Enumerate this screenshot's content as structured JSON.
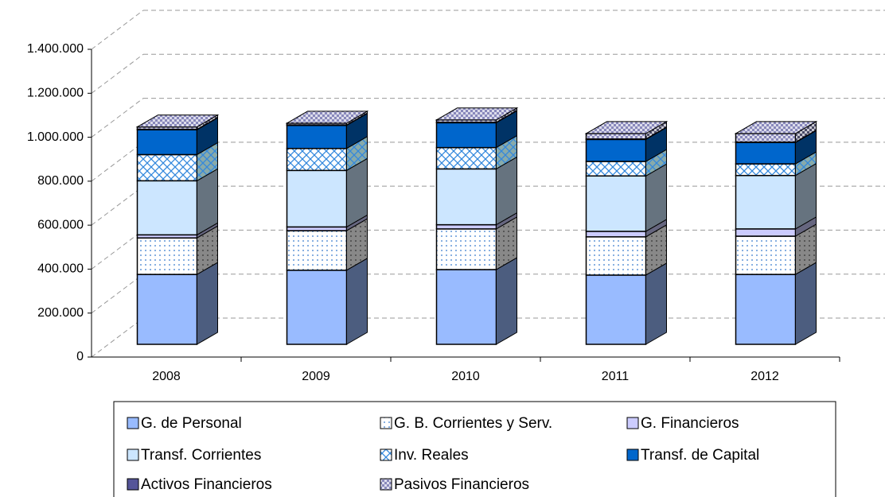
{
  "chart_data": {
    "type": "bar3d_stacked",
    "categories": [
      "2008",
      "2009",
      "2010",
      "2011",
      "2012"
    ],
    "series": [
      {
        "name": "G. de Personal",
        "color": "#99bbff",
        "values": [
          318000,
          337000,
          340000,
          315000,
          318000
        ]
      },
      {
        "name": "G. B. Corrientes y Serv.",
        "color": "#3377cc",
        "pattern": "dots",
        "values": [
          166000,
          180000,
          185000,
          174000,
          174000
        ]
      },
      {
        "name": "G. Financieros",
        "color": "#ccccff",
        "values": [
          14000,
          17000,
          19000,
          25000,
          33000
        ]
      },
      {
        "name": "Transf. Corrientes",
        "color": "#cce6ff",
        "values": [
          246000,
          257000,
          254000,
          252000,
          243000
        ]
      },
      {
        "name": "Inv. Reales",
        "color": "#3388dd",
        "pattern": "hatch",
        "values": [
          119000,
          100000,
          97000,
          66000,
          53000
        ]
      },
      {
        "name": "Transf. de Capital",
        "color": "#0066cc",
        "values": [
          113000,
          105000,
          113000,
          100000,
          97000
        ]
      },
      {
        "name": "Activos Financieros",
        "color": "#555599",
        "values": [
          2000,
          2000,
          2000,
          2000,
          2000
        ]
      },
      {
        "name": "Pasivos Financieros",
        "color": "#8888bb",
        "pattern": "checker",
        "values": [
          11000,
          8000,
          11000,
          25000,
          39000
        ]
      }
    ],
    "ylim": [
      0,
      1400000
    ],
    "yticks": [
      0,
      {
        "value": 200000,
        "label": "200.000"
      },
      {
        "value": 400000,
        "label": "400.000"
      },
      {
        "value": 600000,
        "label": "600.000"
      },
      {
        "value": 800000,
        "label": "800.000"
      },
      {
        "value": 1000000,
        "label": "1.000.000"
      },
      {
        "value": 1200000,
        "label": "1.200.000"
      },
      {
        "value": 1400000,
        "label": "1.400.000"
      }
    ],
    "grid": true,
    "legend": "bottom"
  }
}
